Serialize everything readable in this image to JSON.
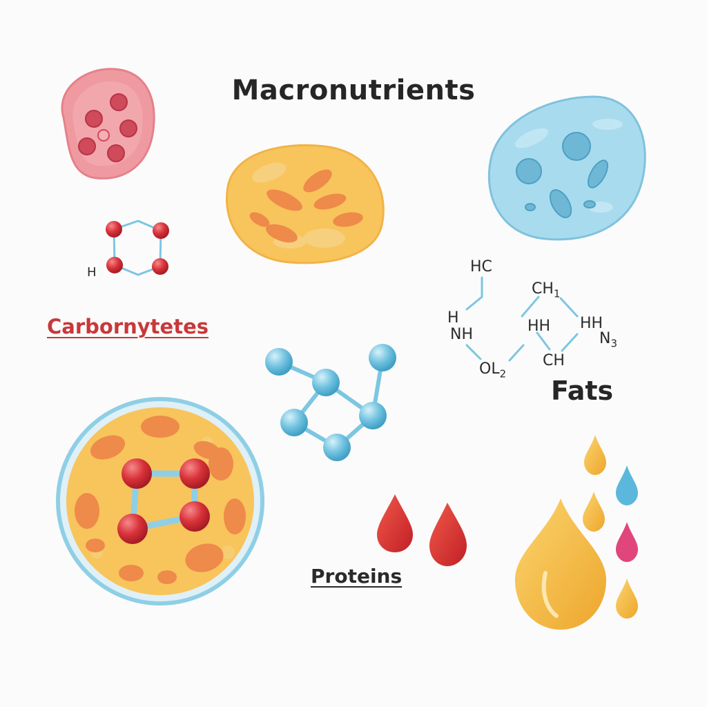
{
  "title": "Macronutrients",
  "labels": {
    "carbohydrates": "Carbornytetes",
    "proteins": "Proteins",
    "fats": "Fats"
  },
  "formula_text": {
    "ring_h": "H",
    "hc": "HC",
    "h_left": "H",
    "nh": "NH",
    "ol2": "OL",
    "ol2_sub": "2",
    "ch1": "CH",
    "ch1_sub": "1",
    "hh": "HH",
    "ch": "CH",
    "hh_right": "HH",
    "n3": "N",
    "n3_sub": "3"
  },
  "colors": {
    "cell_pink": "#ec8f96",
    "cell_orange": "#f7c25a",
    "cell_blue": "#8fcfe6",
    "atom_red": "#d8323a",
    "atom_blue": "#6fc0de",
    "bond_blue": "#7cc6e2",
    "label_red": "#c8383a",
    "drop_red": "#d9302e",
    "drop_gold": "#f2b43a",
    "drop_blue": "#5bb8dc",
    "drop_pink": "#e0457c"
  }
}
